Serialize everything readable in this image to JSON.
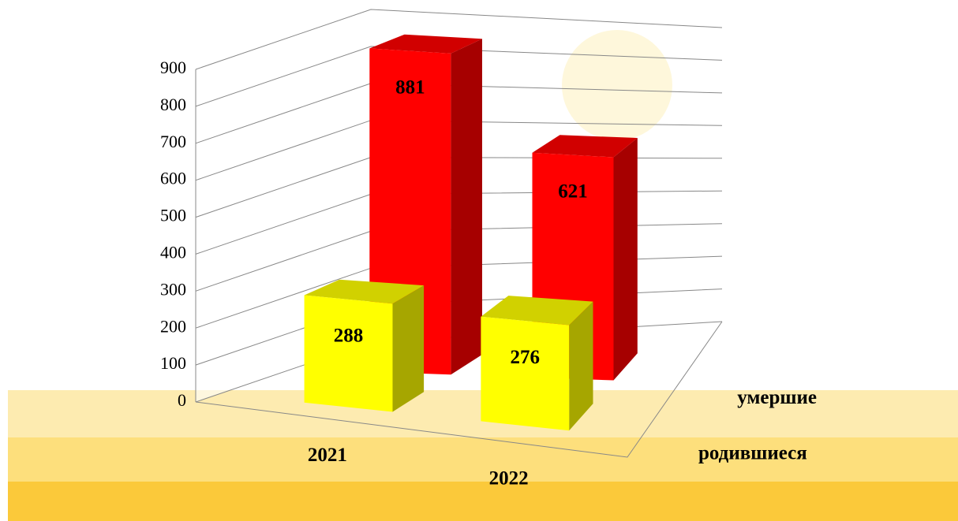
{
  "chart_data": {
    "type": "bar3d",
    "categories": [
      "2021",
      "2022"
    ],
    "series": [
      {
        "name": "родившиеся",
        "color": "#ffff00",
        "values": [
          288,
          276
        ]
      },
      {
        "name": "умершие",
        "color": "#ff0000",
        "values": [
          881,
          621
        ]
      }
    ],
    "ylim": [
      0,
      900
    ],
    "yticks": [
      0,
      100,
      200,
      300,
      400,
      500,
      600,
      700,
      800,
      900
    ],
    "grid": true
  }
}
